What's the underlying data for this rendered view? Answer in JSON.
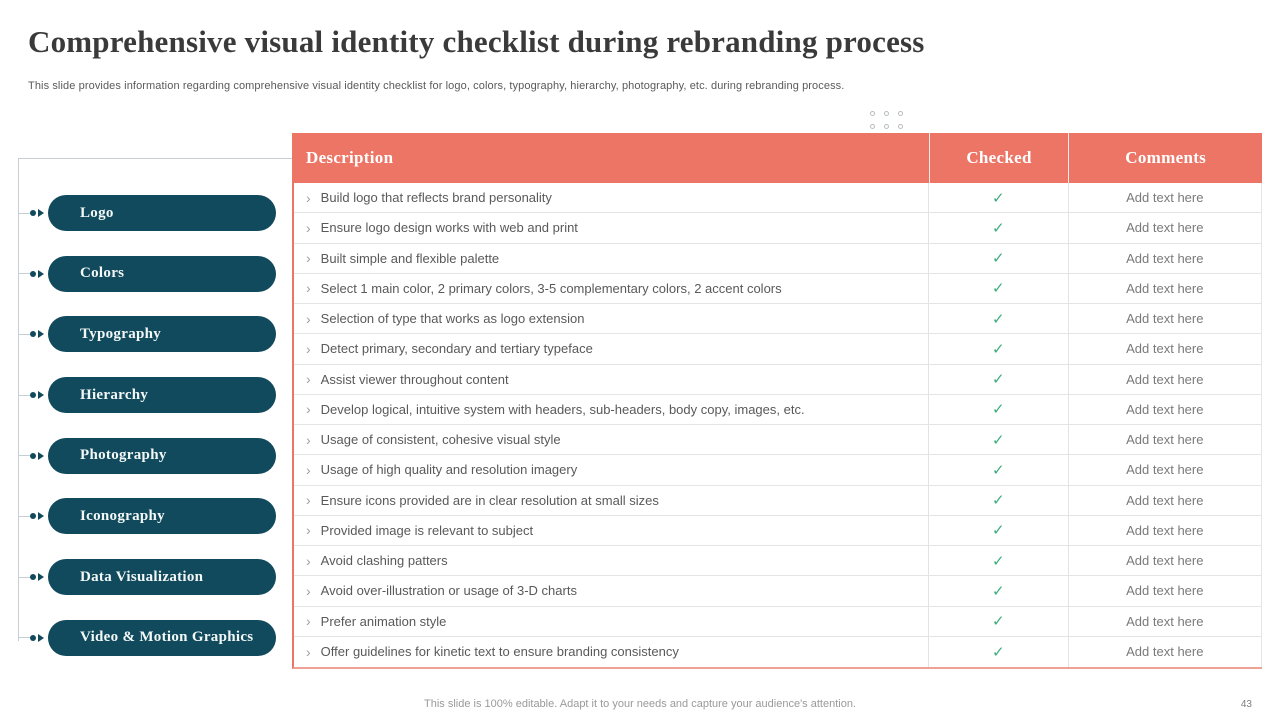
{
  "slide": {
    "title": "Comprehensive visual identity checklist during rebranding process",
    "subtitle": "This slide provides information regarding comprehensive visual identity checklist for logo, colors, typography,  hierarchy, photography, etc.  during rebranding process.",
    "footer": "This slide is 100% editable. Adapt it to your needs and capture your audience's attention.",
    "page_number": "43"
  },
  "colors": {
    "accent_salmon": "#ED7565",
    "accent_teal": "#114A5C",
    "check_green": "#3CAD7C"
  },
  "icons": {
    "bullet_arrow": "dot-arrow",
    "row_chevron": "›",
    "check_mark": "✓"
  },
  "sidebar": {
    "items": [
      {
        "label": "Logo"
      },
      {
        "label": "Colors"
      },
      {
        "label": "Typography"
      },
      {
        "label": "Hierarchy"
      },
      {
        "label": "Photography"
      },
      {
        "label": "Iconography"
      },
      {
        "label": "Data Visualization"
      },
      {
        "label": "Video & Motion Graphics"
      }
    ]
  },
  "table": {
    "headers": {
      "description": "Description",
      "checked": "Checked",
      "comments": "Comments"
    },
    "rows": [
      {
        "bullet": "›",
        "description": "Build logo that reflects brand personality",
        "checked": "✓",
        "comments": "Add text here"
      },
      {
        "bullet": "›",
        "description": "Ensure logo design works with web and print",
        "checked": "✓",
        "comments": "Add text here"
      },
      {
        "bullet": "›",
        "description": "Built simple and flexible palette",
        "checked": "✓",
        "comments": "Add text here"
      },
      {
        "bullet": "›",
        "description": "Select 1 main color, 2 primary colors, 3-5 complementary colors, 2 accent colors",
        "checked": "✓",
        "comments": "Add text here"
      },
      {
        "bullet": "›",
        "description": "Selection of type that works as logo extension",
        "checked": "✓",
        "comments": "Add text here"
      },
      {
        "bullet": "›",
        "description": "Detect primary, secondary and tertiary typeface",
        "checked": "✓",
        "comments": "Add text here"
      },
      {
        "bullet": "›",
        "description": "Assist viewer throughout content",
        "checked": "✓",
        "comments": "Add text here"
      },
      {
        "bullet": "›",
        "description": "Develop logical, intuitive system with headers, sub-headers, body copy, images, etc.",
        "checked": "✓",
        "comments": "Add text here"
      },
      {
        "bullet": "›",
        "description": "Usage of consistent, cohesive visual style",
        "checked": "✓",
        "comments": "Add text here"
      },
      {
        "bullet": "›",
        "description": "Usage of high quality and resolution imagery",
        "checked": "✓",
        "comments": "Add text here"
      },
      {
        "bullet": "›",
        "description": "Ensure icons provided are in clear resolution at small sizes",
        "checked": "✓",
        "comments": "Add text here"
      },
      {
        "bullet": "›",
        "description": "Provided image is relevant to subject",
        "checked": "✓",
        "comments": "Add text here"
      },
      {
        "bullet": "›",
        "description": "Avoid clashing patters",
        "checked": "✓",
        "comments": "Add text here"
      },
      {
        "bullet": "›",
        "description": "Avoid over-illustration or usage of 3-D charts",
        "checked": "✓",
        "comments": "Add text here"
      },
      {
        "bullet": "›",
        "description": "Prefer animation style",
        "checked": "✓",
        "comments": "Add text here"
      },
      {
        "bullet": "›",
        "description": "Offer guidelines for kinetic text to ensure branding consistency",
        "checked": "✓",
        "comments": "Add text here"
      }
    ]
  }
}
